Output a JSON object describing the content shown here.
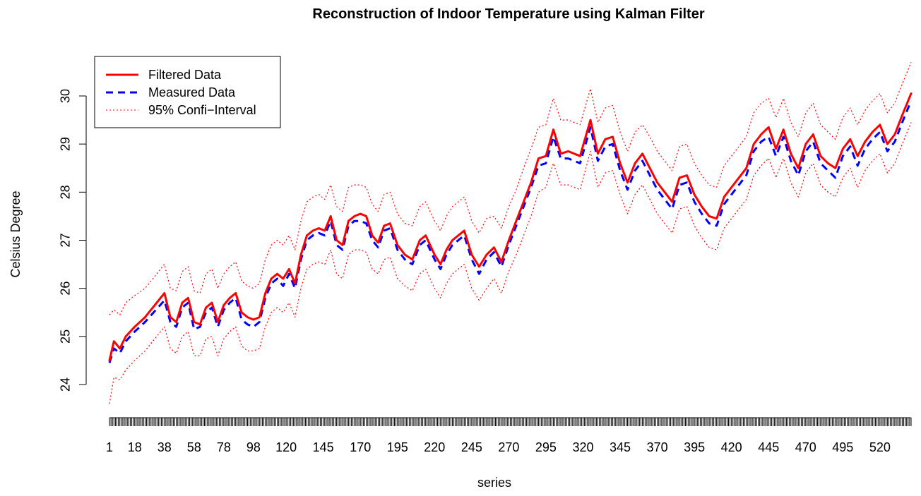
{
  "chart_data": {
    "type": "line",
    "title": "Reconstruction of Indoor Temperature using Kalman Filter",
    "xlabel": "series",
    "ylabel": "Celsius Degree",
    "xlim": [
      1,
      541
    ],
    "ylim": [
      23.5,
      30.8
    ],
    "y_ticks": [
      24,
      25,
      26,
      27,
      28,
      29,
      30
    ],
    "x_ticks": [
      1,
      18,
      38,
      58,
      78,
      98,
      120,
      145,
      170,
      195,
      220,
      245,
      270,
      295,
      320,
      345,
      370,
      395,
      420,
      445,
      470,
      495,
      520
    ],
    "grid": false,
    "legend_position": "top-left",
    "legend": [
      "Filtered Data",
      "Measured Data",
      "95% Confi−Interval"
    ],
    "series": [
      {
        "name": "Filtered Data",
        "color": "#ff0000",
        "style": "solid",
        "x": [
          1,
          4,
          8,
          12,
          18,
          25,
          38,
          42,
          46,
          50,
          54,
          58,
          62,
          66,
          70,
          74,
          78,
          82,
          86,
          90,
          94,
          98,
          102,
          106,
          110,
          114,
          118,
          122,
          126,
          130,
          134,
          138,
          142,
          146,
          150,
          154,
          158,
          162,
          166,
          170,
          174,
          178,
          182,
          186,
          190,
          195,
          200,
          205,
          210,
          214,
          220,
          224,
          228,
          232,
          236,
          240,
          245,
          250,
          255,
          260,
          265,
          270,
          275,
          280,
          285,
          290,
          295,
          300,
          305,
          310,
          318,
          325,
          330,
          335,
          340,
          345,
          350,
          355,
          360,
          365,
          370,
          375,
          380,
          385,
          390,
          395,
          400,
          405,
          410,
          415,
          420,
          425,
          430,
          435,
          440,
          445,
          450,
          455,
          460,
          465,
          470,
          475,
          480,
          485,
          490,
          495,
          500,
          505,
          510,
          515,
          520,
          525,
          530,
          535,
          541
        ],
        "y": [
          24.5,
          24.9,
          24.75,
          25.0,
          25.2,
          25.4,
          25.9,
          25.4,
          25.3,
          25.7,
          25.8,
          25.3,
          25.25,
          25.6,
          25.7,
          25.3,
          25.65,
          25.8,
          25.9,
          25.5,
          25.4,
          25.35,
          25.4,
          25.9,
          26.2,
          26.3,
          26.2,
          26.4,
          26.1,
          26.7,
          27.1,
          27.2,
          27.25,
          27.2,
          27.5,
          27.0,
          26.9,
          27.4,
          27.5,
          27.55,
          27.5,
          27.1,
          26.95,
          27.3,
          27.35,
          26.9,
          26.7,
          26.6,
          27.0,
          27.1,
          26.7,
          26.5,
          26.8,
          27.0,
          27.1,
          27.2,
          26.7,
          26.45,
          26.7,
          26.85,
          26.55,
          27.0,
          27.4,
          27.8,
          28.2,
          28.7,
          28.75,
          29.3,
          28.8,
          28.85,
          28.75,
          29.5,
          28.8,
          29.1,
          29.15,
          28.6,
          28.2,
          28.6,
          28.8,
          28.5,
          28.2,
          28.0,
          27.8,
          28.3,
          28.35,
          27.95,
          27.7,
          27.5,
          27.45,
          27.9,
          28.1,
          28.3,
          28.5,
          29.0,
          29.2,
          29.35,
          28.9,
          29.3,
          28.8,
          28.5,
          29.0,
          29.2,
          28.75,
          28.6,
          28.5,
          28.9,
          29.1,
          28.75,
          29.05,
          29.25,
          29.4,
          29.0,
          29.2,
          29.6,
          30.05
        ]
      },
      {
        "name": "Measured Data",
        "color": "#0000ff",
        "style": "dashed",
        "x": [
          1,
          4,
          8,
          12,
          18,
          25,
          38,
          42,
          46,
          50,
          54,
          58,
          62,
          66,
          70,
          74,
          78,
          82,
          86,
          90,
          94,
          98,
          102,
          106,
          110,
          114,
          118,
          122,
          126,
          130,
          134,
          138,
          142,
          146,
          150,
          154,
          158,
          162,
          166,
          170,
          174,
          178,
          182,
          186,
          190,
          195,
          200,
          205,
          210,
          214,
          220,
          224,
          228,
          232,
          236,
          240,
          245,
          250,
          255,
          260,
          265,
          270,
          275,
          280,
          285,
          290,
          295,
          300,
          305,
          310,
          318,
          325,
          330,
          335,
          340,
          345,
          350,
          355,
          360,
          365,
          370,
          375,
          380,
          385,
          390,
          395,
          400,
          405,
          410,
          415,
          420,
          425,
          430,
          435,
          440,
          445,
          450,
          455,
          460,
          465,
          470,
          475,
          480,
          485,
          490,
          495,
          500,
          505,
          510,
          515,
          520,
          525,
          530,
          535,
          541
        ],
        "y": [
          24.45,
          24.75,
          24.65,
          24.9,
          25.1,
          25.3,
          25.75,
          25.3,
          25.2,
          25.6,
          25.7,
          25.15,
          25.2,
          25.5,
          25.6,
          25.2,
          25.55,
          25.7,
          25.8,
          25.35,
          25.25,
          25.2,
          25.3,
          25.8,
          26.1,
          26.2,
          26.05,
          26.3,
          26.0,
          26.6,
          27.0,
          27.1,
          27.15,
          27.1,
          27.4,
          26.9,
          26.8,
          27.3,
          27.4,
          27.4,
          27.35,
          27.0,
          26.85,
          27.2,
          27.25,
          26.8,
          26.6,
          26.5,
          26.9,
          27.0,
          26.6,
          26.4,
          26.7,
          26.9,
          27.0,
          27.1,
          26.6,
          26.3,
          26.6,
          26.75,
          26.45,
          26.9,
          27.3,
          27.7,
          28.1,
          28.55,
          28.6,
          29.15,
          28.7,
          28.7,
          28.6,
          29.35,
          28.65,
          28.95,
          29.0,
          28.45,
          28.05,
          28.45,
          28.65,
          28.35,
          28.05,
          27.85,
          27.65,
          28.15,
          28.2,
          27.8,
          27.55,
          27.35,
          27.3,
          27.75,
          27.95,
          28.15,
          28.35,
          28.85,
          29.05,
          29.15,
          28.75,
          29.15,
          28.65,
          28.35,
          28.85,
          29.05,
          28.6,
          28.45,
          28.3,
          28.75,
          28.95,
          28.55,
          28.9,
          29.1,
          29.25,
          28.85,
          29.05,
          29.45,
          29.9
        ]
      },
      {
        "name": "95% Confi−Interval (upper)",
        "color": "#ff0000",
        "style": "dotted",
        "x": [
          1,
          4,
          8,
          12,
          18,
          25,
          38,
          42,
          46,
          50,
          54,
          58,
          62,
          66,
          70,
          74,
          78,
          82,
          86,
          90,
          94,
          98,
          102,
          106,
          110,
          114,
          118,
          122,
          126,
          130,
          134,
          138,
          142,
          146,
          150,
          154,
          158,
          162,
          166,
          170,
          174,
          178,
          182,
          186,
          190,
          195,
          200,
          205,
          210,
          214,
          220,
          224,
          228,
          232,
          236,
          240,
          245,
          250,
          255,
          260,
          265,
          270,
          275,
          280,
          285,
          290,
          295,
          300,
          305,
          310,
          318,
          325,
          330,
          335,
          340,
          345,
          350,
          355,
          360,
          365,
          370,
          375,
          380,
          385,
          390,
          395,
          400,
          405,
          410,
          415,
          420,
          425,
          430,
          435,
          440,
          445,
          450,
          455,
          460,
          465,
          470,
          475,
          480,
          485,
          490,
          495,
          500,
          505,
          510,
          515,
          520,
          525,
          530,
          535,
          541
        ],
        "y": [
          25.45,
          25.55,
          25.45,
          25.7,
          25.85,
          26.0,
          26.5,
          26.0,
          25.95,
          26.35,
          26.45,
          25.95,
          25.9,
          26.3,
          26.4,
          26.0,
          26.3,
          26.45,
          26.55,
          26.15,
          26.05,
          26.0,
          26.1,
          26.6,
          26.9,
          27.0,
          26.9,
          27.1,
          26.8,
          27.4,
          27.8,
          27.9,
          27.95,
          27.85,
          28.15,
          27.7,
          27.6,
          28.1,
          28.15,
          28.15,
          28.1,
          27.75,
          27.6,
          27.95,
          28.0,
          27.55,
          27.35,
          27.3,
          27.7,
          27.8,
          27.4,
          27.2,
          27.5,
          27.7,
          27.8,
          27.9,
          27.4,
          27.15,
          27.45,
          27.5,
          27.25,
          27.7,
          28.05,
          28.5,
          28.9,
          29.35,
          29.4,
          29.95,
          29.5,
          29.5,
          29.4,
          30.15,
          29.45,
          29.75,
          29.8,
          29.25,
          28.85,
          29.25,
          29.4,
          29.15,
          28.85,
          28.65,
          28.45,
          28.95,
          29.0,
          28.6,
          28.35,
          28.15,
          28.1,
          28.55,
          28.75,
          28.95,
          29.15,
          29.65,
          29.85,
          29.95,
          29.55,
          29.95,
          29.45,
          29.15,
          29.65,
          29.85,
          29.4,
          29.25,
          29.1,
          29.55,
          29.75,
          29.4,
          29.7,
          29.9,
          30.05,
          29.65,
          29.85,
          30.25,
          30.7
        ]
      },
      {
        "name": "95% Confi−Interval (lower)",
        "color": "#ff0000",
        "style": "dotted",
        "x": [
          1,
          4,
          8,
          12,
          18,
          25,
          38,
          42,
          46,
          50,
          54,
          58,
          62,
          66,
          70,
          74,
          78,
          82,
          86,
          90,
          94,
          98,
          102,
          106,
          110,
          114,
          118,
          122,
          126,
          130,
          134,
          138,
          142,
          146,
          150,
          154,
          158,
          162,
          166,
          170,
          174,
          178,
          182,
          186,
          190,
          195,
          200,
          205,
          210,
          214,
          220,
          224,
          228,
          232,
          236,
          240,
          245,
          250,
          255,
          260,
          265,
          270,
          275,
          280,
          285,
          290,
          295,
          300,
          305,
          310,
          318,
          325,
          330,
          335,
          340,
          345,
          350,
          355,
          360,
          365,
          370,
          375,
          380,
          385,
          390,
          395,
          400,
          405,
          410,
          415,
          420,
          425,
          430,
          435,
          440,
          445,
          450,
          455,
          460,
          465,
          470,
          475,
          480,
          485,
          490,
          495,
          500,
          505,
          510,
          515,
          520,
          525,
          530,
          535,
          541
        ],
        "y": [
          23.6,
          24.15,
          24.1,
          24.3,
          24.5,
          24.7,
          25.2,
          24.75,
          24.65,
          25.0,
          25.1,
          24.6,
          24.6,
          24.95,
          25.0,
          24.6,
          24.95,
          25.1,
          25.2,
          24.8,
          24.7,
          24.7,
          24.75,
          25.2,
          25.5,
          25.6,
          25.5,
          25.7,
          25.4,
          26.0,
          26.4,
          26.5,
          26.55,
          26.5,
          26.8,
          26.3,
          26.2,
          26.7,
          26.8,
          26.8,
          26.75,
          26.4,
          26.3,
          26.6,
          26.65,
          26.2,
          26.05,
          25.95,
          26.3,
          26.4,
          26.0,
          25.8,
          26.1,
          26.3,
          26.4,
          26.5,
          26.0,
          25.75,
          26.0,
          26.2,
          25.9,
          26.35,
          26.7,
          27.1,
          27.5,
          28.0,
          28.1,
          28.6,
          28.15,
          28.15,
          28.05,
          28.85,
          28.1,
          28.4,
          28.45,
          27.95,
          27.55,
          27.95,
          28.15,
          27.85,
          27.55,
          27.35,
          27.15,
          27.65,
          27.7,
          27.3,
          27.05,
          26.85,
          26.8,
          27.25,
          27.45,
          27.65,
          27.85,
          28.35,
          28.55,
          28.7,
          28.3,
          28.7,
          28.2,
          27.9,
          28.4,
          28.6,
          28.15,
          28.0,
          27.9,
          28.3,
          28.5,
          28.1,
          28.45,
          28.65,
          28.8,
          28.4,
          28.6,
          29.0,
          29.45
        ]
      }
    ]
  }
}
